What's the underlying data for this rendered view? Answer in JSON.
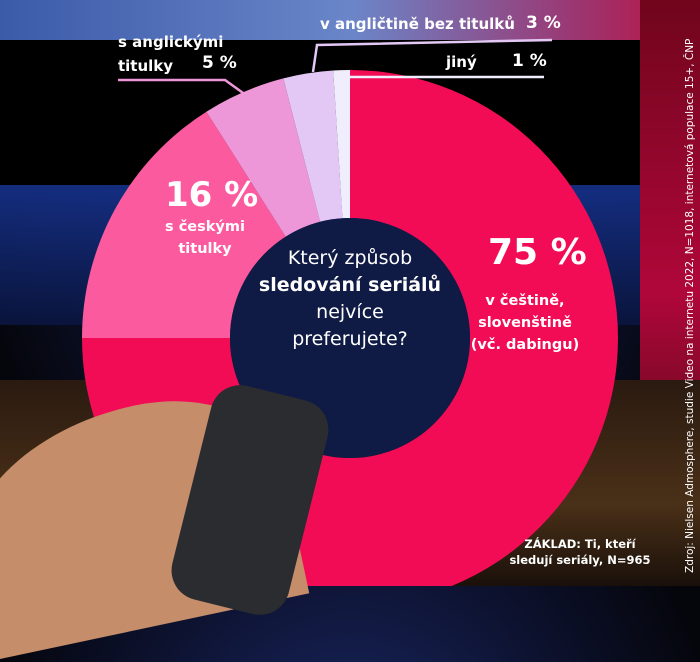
{
  "chart_data": {
    "type": "pie",
    "donut": true,
    "title": "Který způsob sledování seriálů nejvíce preferujete?",
    "title_parts": [
      "Který způsob",
      "sledování seriálů",
      "nejvíce",
      "preferujete?"
    ],
    "slices": [
      {
        "label_lines": [
          "v češtině,",
          "slovenštině",
          "(vč. dabingu)"
        ],
        "value": 75,
        "value_label": "75 %",
        "color": "#f20c55"
      },
      {
        "label_lines": [
          "s českými",
          "titulky"
        ],
        "value": 16,
        "value_label": "16 %",
        "color": "#fb5b9e"
      },
      {
        "label_lines": [
          "s anglickými",
          "titulky"
        ],
        "value": 5,
        "value_label": "5 %",
        "color": "#ee97d8"
      },
      {
        "label_lines": [
          "v angličtině bez titulků"
        ],
        "value": 3,
        "value_label": "3 %",
        "color": "#e3c8f5"
      },
      {
        "label_lines": [
          "jiný"
        ],
        "value": 1,
        "value_label": "1 %",
        "color": "#f0eefc"
      }
    ],
    "start": "top",
    "direction": "clockwise"
  },
  "base_lines": [
    "ZÁKLAD: Ti, kteří",
    "sledují seriály, N=965"
  ],
  "source": "Zdroj: Nielsen Admosphere, studie Video na internetu 2022, N=1018, internetová populace 15+, ČNP"
}
